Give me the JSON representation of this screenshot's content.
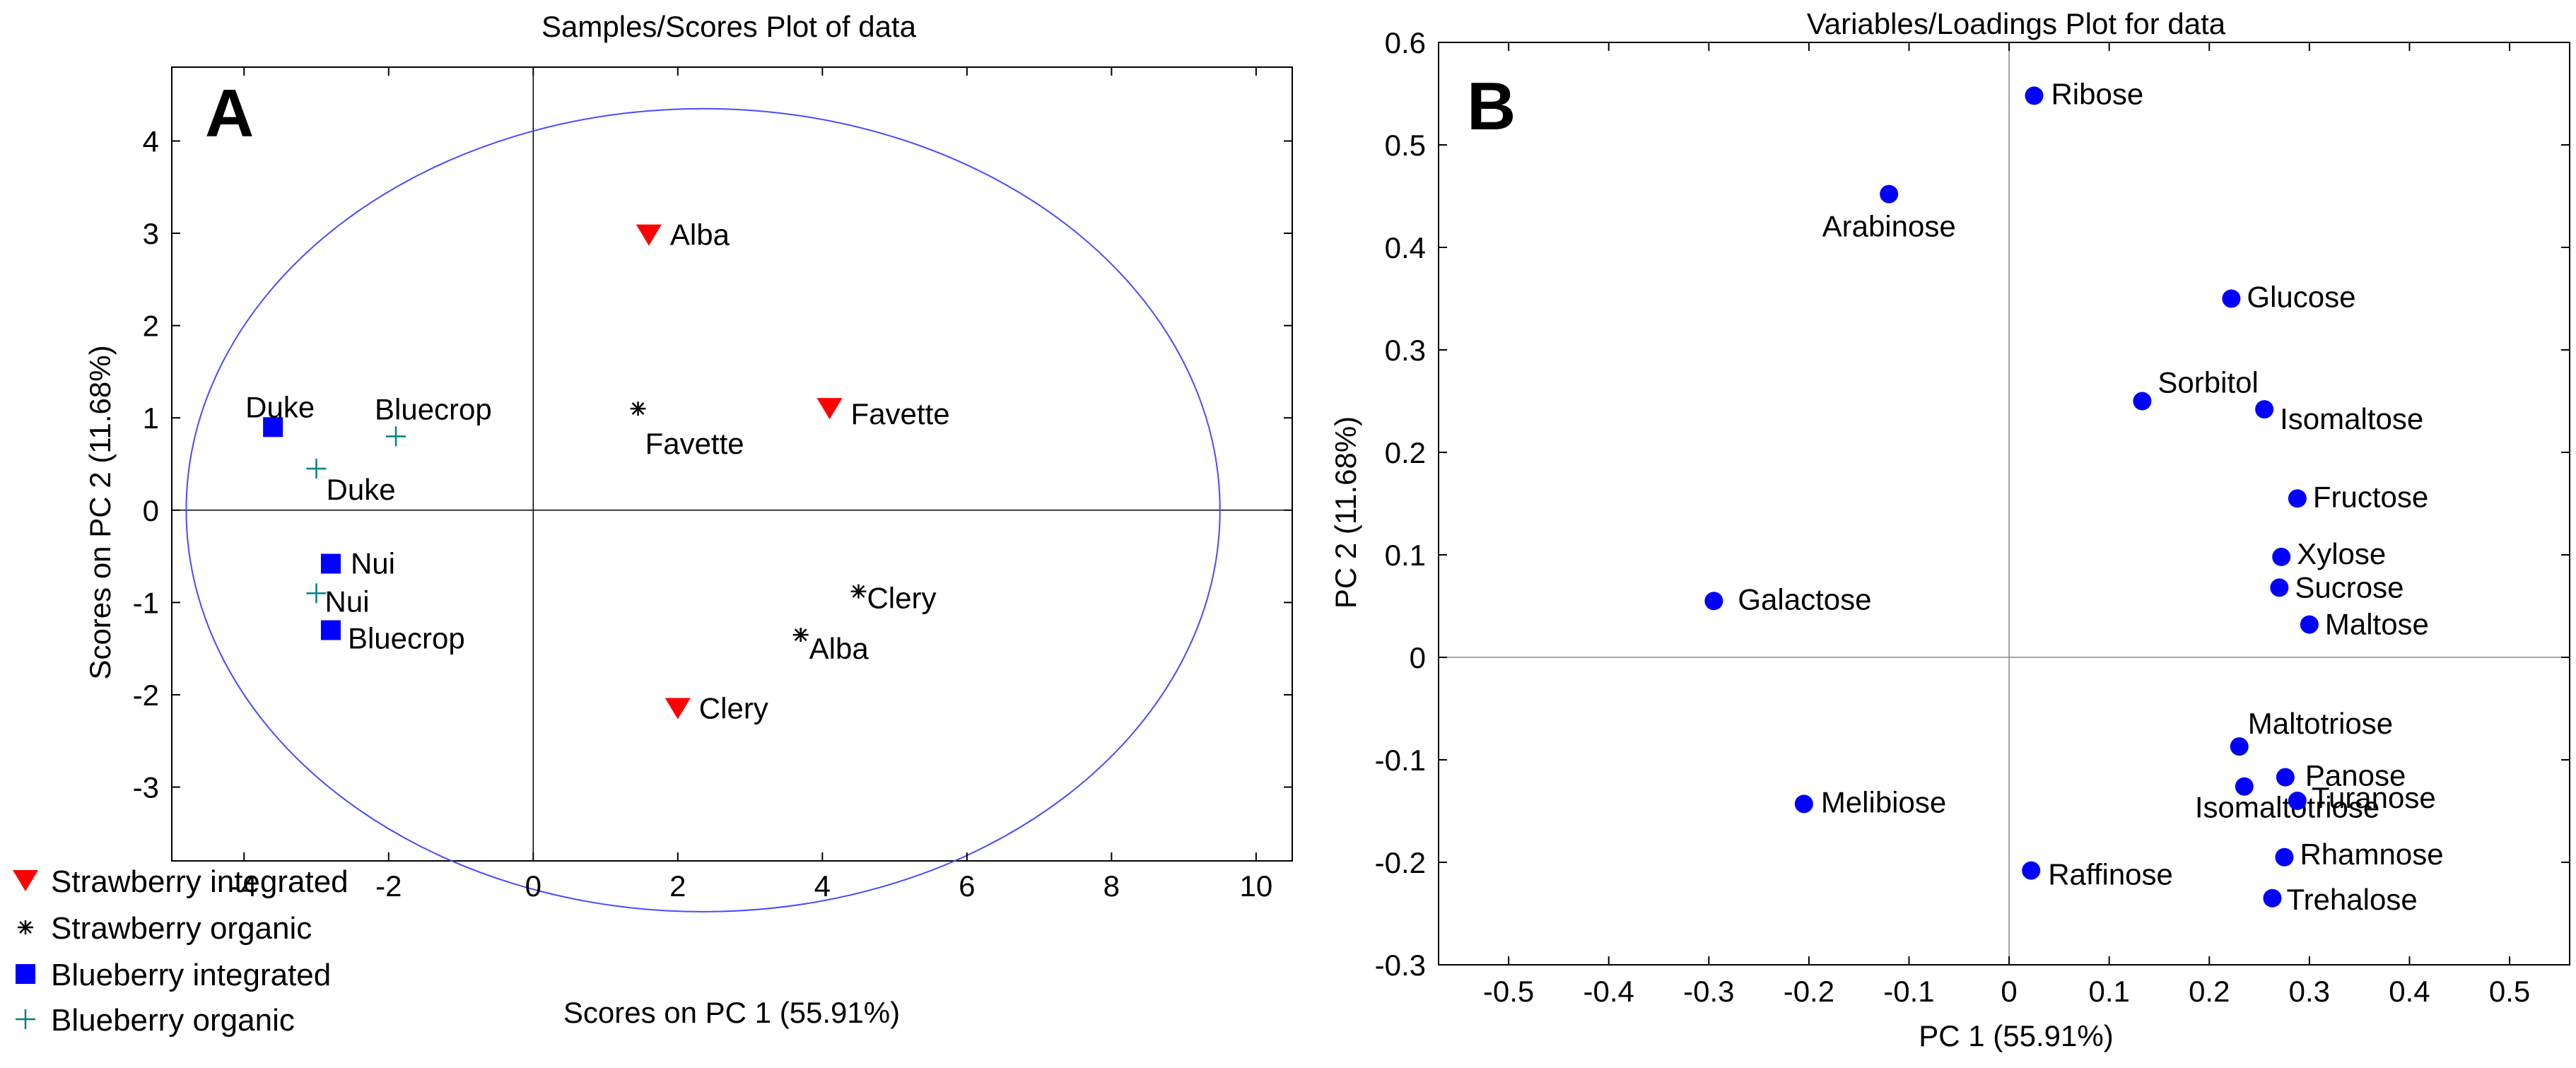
{
  "chart_data": [
    {
      "type": "scatter",
      "panel_label": "A",
      "title": "Samples/Scores Plot of data",
      "xlabel": "Scores on PC 1 (55.91%)",
      "ylabel": "Scores on PC 2 (11.68%)",
      "xlim": [
        -5,
        10.5
      ],
      "ylim": [
        -3.8,
        4.8
      ],
      "xticks": [
        -4,
        -2,
        0,
        2,
        4,
        6,
        8,
        10
      ],
      "yticks": [
        -3,
        -2,
        -1,
        0,
        1,
        2,
        3,
        4
      ],
      "ellipse": {
        "cx": 2.35,
        "cy": 0.0,
        "rx": 7.15,
        "ry": 4.35
      },
      "series": [
        {
          "name": "Strawberry integrated",
          "marker": "triangle-down",
          "color": "#ff0000",
          "points": [
            {
              "x": 1.6,
              "y": 2.98,
              "label": "Alba"
            },
            {
              "x": 4.1,
              "y": 1.1,
              "label": "Favette"
            },
            {
              "x": 2.0,
              "y": -2.15,
              "label": "Clery"
            }
          ]
        },
        {
          "name": "Strawberry organic",
          "marker": "asterisk",
          "color": "#000000",
          "points": [
            {
              "x": 1.45,
              "y": 1.1,
              "label": "Favette"
            },
            {
              "x": 4.5,
              "y": -0.88,
              "label": "Clery"
            },
            {
              "x": 3.7,
              "y": -1.35,
              "label": "Alba"
            }
          ]
        },
        {
          "name": "Blueberry integrated",
          "marker": "square",
          "color": "#0000ff",
          "points": [
            {
              "x": -3.6,
              "y": 0.9,
              "label": "Duke"
            },
            {
              "x": -2.8,
              "y": -0.58,
              "label": "Nui"
            },
            {
              "x": -2.8,
              "y": -1.3,
              "label": "Bluecrop"
            }
          ]
        },
        {
          "name": "Blueberry organic",
          "marker": "plus",
          "color": "#008080",
          "points": [
            {
              "x": -1.9,
              "y": 0.8,
              "label": "Bluecrop"
            },
            {
              "x": -3.0,
              "y": 0.45,
              "label": "Duke"
            },
            {
              "x": -3.0,
              "y": -0.9,
              "label": "Nui"
            }
          ]
        }
      ]
    },
    {
      "type": "scatter",
      "panel_label": "B",
      "title": "Variables/Loadings Plot for data",
      "xlabel": "PC 1 (55.91%)",
      "ylabel": "PC 2 (11.68%)",
      "xlim": [
        -0.57,
        0.56
      ],
      "ylim": [
        -0.3,
        0.6
      ],
      "xticks": [
        -0.5,
        -0.4,
        -0.3,
        -0.2,
        -0.1,
        0,
        0.1,
        0.2,
        0.3,
        0.4,
        0.5
      ],
      "yticks": [
        -0.3,
        -0.2,
        -0.1,
        0,
        0.1,
        0.2,
        0.3,
        0.4,
        0.5,
        0.6
      ],
      "xtick_labels": [
        "-0.5",
        "-0.4",
        "-0.3",
        "-0.2",
        "-0.1",
        "0",
        "0.1",
        "0.2",
        "0.3",
        "0.4",
        "0.5"
      ],
      "ytick_labels": [
        "-0.3",
        "-0.2",
        "-0.1",
        "0",
        "0.1",
        "0.2",
        "0.3",
        "0.4",
        "0.5",
        "0.6"
      ],
      "color": "#0000ff",
      "points": [
        {
          "x": 0.025,
          "y": 0.548,
          "label": "Ribose"
        },
        {
          "x": -0.12,
          "y": 0.452,
          "label": "Arabinose"
        },
        {
          "x": 0.222,
          "y": 0.35,
          "label": "Glucose"
        },
        {
          "x": 0.133,
          "y": 0.25,
          "label": "Sorbitol"
        },
        {
          "x": 0.255,
          "y": 0.242,
          "label": "Isomaltose"
        },
        {
          "x": 0.288,
          "y": 0.155,
          "label": "Fructose"
        },
        {
          "x": 0.272,
          "y": 0.098,
          "label": "Xylose"
        },
        {
          "x": 0.27,
          "y": 0.068,
          "label": "Sucrose"
        },
        {
          "x": 0.3,
          "y": 0.032,
          "label": "Maltose"
        },
        {
          "x": -0.295,
          "y": 0.055,
          "label": "Galactose"
        },
        {
          "x": 0.23,
          "y": -0.087,
          "label": "Maltotriose"
        },
        {
          "x": 0.276,
          "y": -0.117,
          "label": "Panose"
        },
        {
          "x": 0.235,
          "y": -0.126,
          "label": "Isomaltotriose"
        },
        {
          "x": 0.288,
          "y": -0.14,
          "label": "Turanose"
        },
        {
          "x": -0.205,
          "y": -0.143,
          "label": "Melibiose"
        },
        {
          "x": 0.275,
          "y": -0.195,
          "label": "Rhamnose"
        },
        {
          "x": 0.022,
          "y": -0.208,
          "label": "Raffinose"
        },
        {
          "x": 0.263,
          "y": -0.235,
          "label": "Trehalose"
        }
      ]
    }
  ]
}
